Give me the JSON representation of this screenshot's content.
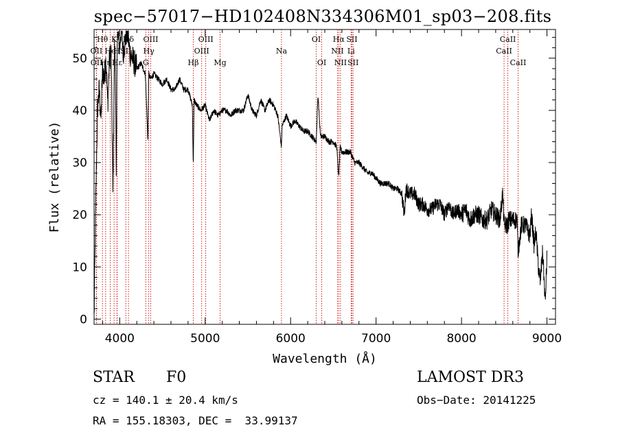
{
  "chart_data": {
    "type": "line",
    "title": "spec−57017−HD102408N334306M01_sp03−208.fits",
    "xlabel": "Wavelength (Å)",
    "ylabel": "Flux (relative)",
    "xlim": [
      3700,
      9100
    ],
    "ylim": [
      -1,
      55.5
    ],
    "xticks": [
      4000,
      5000,
      6000,
      7000,
      8000,
      9000
    ],
    "yticks": [
      0,
      10,
      20,
      30,
      40,
      50
    ],
    "line_color": "#000000",
    "marker_color": "#cc0000",
    "series": [
      {
        "name": "flux",
        "x": [
          3700,
          3720,
          3740,
          3760,
          3780,
          3800,
          3820,
          3840,
          3860,
          3880,
          3900,
          3920,
          3940,
          3950,
          3960,
          3970,
          3980,
          4000,
          4020,
          4040,
          4060,
          4080,
          4100,
          4120,
          4150,
          4200,
          4250,
          4300,
          4330,
          4340,
          4360,
          4400,
          4450,
          4500,
          4550,
          4600,
          4650,
          4700,
          4750,
          4800,
          4850,
          4861,
          4870,
          4900,
          4950,
          5000,
          5050,
          5100,
          5150,
          5200,
          5250,
          5300,
          5350,
          5400,
          5450,
          5500,
          5550,
          5600,
          5650,
          5700,
          5750,
          5800,
          5850,
          5893,
          5900,
          5950,
          6000,
          6050,
          6100,
          6150,
          6200,
          6250,
          6300,
          6320,
          6350,
          6400,
          6450,
          6500,
          6540,
          6563,
          6580,
          6600,
          6650,
          6700,
          6750,
          6800,
          6850,
          6900,
          6950,
          7000,
          7050,
          7100,
          7150,
          7200,
          7250,
          7300,
          7330,
          7350,
          7400,
          7450,
          7500,
          7550,
          7600,
          7650,
          7700,
          7750,
          7800,
          7850,
          7900,
          7950,
          8000,
          8050,
          8100,
          8150,
          8200,
          8250,
          8300,
          8350,
          8400,
          8450,
          8480,
          8500,
          8542,
          8550,
          8600,
          8650,
          8662,
          8700,
          8750,
          8800,
          8820,
          8850,
          8870,
          8900,
          8920,
          8950,
          8980,
          9000
        ],
        "y": [
          0,
          23,
          40,
          44,
          38,
          48,
          46,
          50,
          41,
          50,
          51,
          24,
          52,
          49,
          25,
          55,
          54,
          52,
          56,
          51,
          53,
          55,
          54,
          51,
          50,
          48,
          49,
          47,
          34,
          47,
          46,
          47,
          46,
          45,
          46,
          44,
          44,
          46,
          44,
          44,
          41,
          29,
          42,
          41,
          40,
          41,
          38,
          40,
          39,
          40,
          40,
          39,
          40,
          40,
          40,
          43,
          40,
          39,
          42,
          40,
          42,
          41,
          39,
          33,
          37,
          39,
          37,
          38,
          37,
          36,
          36,
          35,
          34,
          43,
          35,
          35,
          34,
          34,
          33,
          27,
          33,
          32,
          32,
          32,
          30,
          30,
          29,
          28,
          28,
          27,
          26,
          26,
          26,
          25,
          25,
          24,
          20,
          25,
          24,
          24,
          22,
          22,
          21,
          21,
          22,
          22,
          20,
          22,
          20,
          21,
          20,
          21,
          19,
          20,
          20,
          19,
          19,
          21,
          20,
          19,
          24,
          18,
          18,
          19,
          19,
          19,
          13,
          18,
          18,
          16,
          20,
          14,
          17,
          10,
          7,
          13,
          3,
          12
        ]
      }
    ],
    "lines": [
      {
        "name": "Hθ",
        "wl": 3798,
        "row": 0
      },
      {
        "name": "OII",
        "wl": 3727,
        "row": 1
      },
      {
        "name": "OII",
        "wl": 3729,
        "row": 2
      },
      {
        "name": "Hη",
        "wl": 3835,
        "row": 2
      },
      {
        "name": "He",
        "wl": 3889,
        "row": 1
      },
      {
        "name": "K",
        "wl": 3934,
        "row": 0
      },
      {
        "name": "H",
        "wl": 3968,
        "row": 1
      },
      {
        "name": "Hε",
        "wl": 3970,
        "row": 2
      },
      {
        "name": "Hδ",
        "wl": 4102,
        "row": 0
      },
      {
        "name": "SII",
        "wl": 4072,
        "row": 1
      },
      {
        "name": "OIII",
        "wl": 4363,
        "row": 0
      },
      {
        "name": "Hγ",
        "wl": 4340,
        "row": 1
      },
      {
        "name": "G",
        "wl": 4305,
        "row": 2
      },
      {
        "name": "Hβ",
        "wl": 4861,
        "row": 2
      },
      {
        "name": "OIII",
        "wl": 5007,
        "row": 0
      },
      {
        "name": "OIII",
        "wl": 4959,
        "row": 1
      },
      {
        "name": "Mg",
        "wl": 5175,
        "row": 2
      },
      {
        "name": "Na",
        "wl": 5893,
        "row": 1
      },
      {
        "name": "OI",
        "wl": 6300,
        "row": 0
      },
      {
        "name": "OI",
        "wl": 6364,
        "row": 2
      },
      {
        "name": "Hα",
        "wl": 6563,
        "row": 0
      },
      {
        "name": "NII",
        "wl": 6548,
        "row": 1
      },
      {
        "name": "NII",
        "wl": 6584,
        "row": 2
      },
      {
        "name": "SII",
        "wl": 6717,
        "row": 0
      },
      {
        "name": "Li",
        "wl": 6708,
        "row": 1
      },
      {
        "name": "SII",
        "wl": 6731,
        "row": 2
      },
      {
        "name": "CaII",
        "wl": 8542,
        "row": 0
      },
      {
        "name": "CaII",
        "wl": 8498,
        "row": 1
      },
      {
        "name": "CaII",
        "wl": 8662,
        "row": 2
      }
    ]
  },
  "info": {
    "class": "STAR",
    "subclass": "F0",
    "survey": "LAMOST DR3",
    "cz": "cz = 140.1 ± 20.4 km/s",
    "obs_date": "Obs−Date: 20141225",
    "coords": "RA = 155.18303, DEC =  33.99137"
  }
}
